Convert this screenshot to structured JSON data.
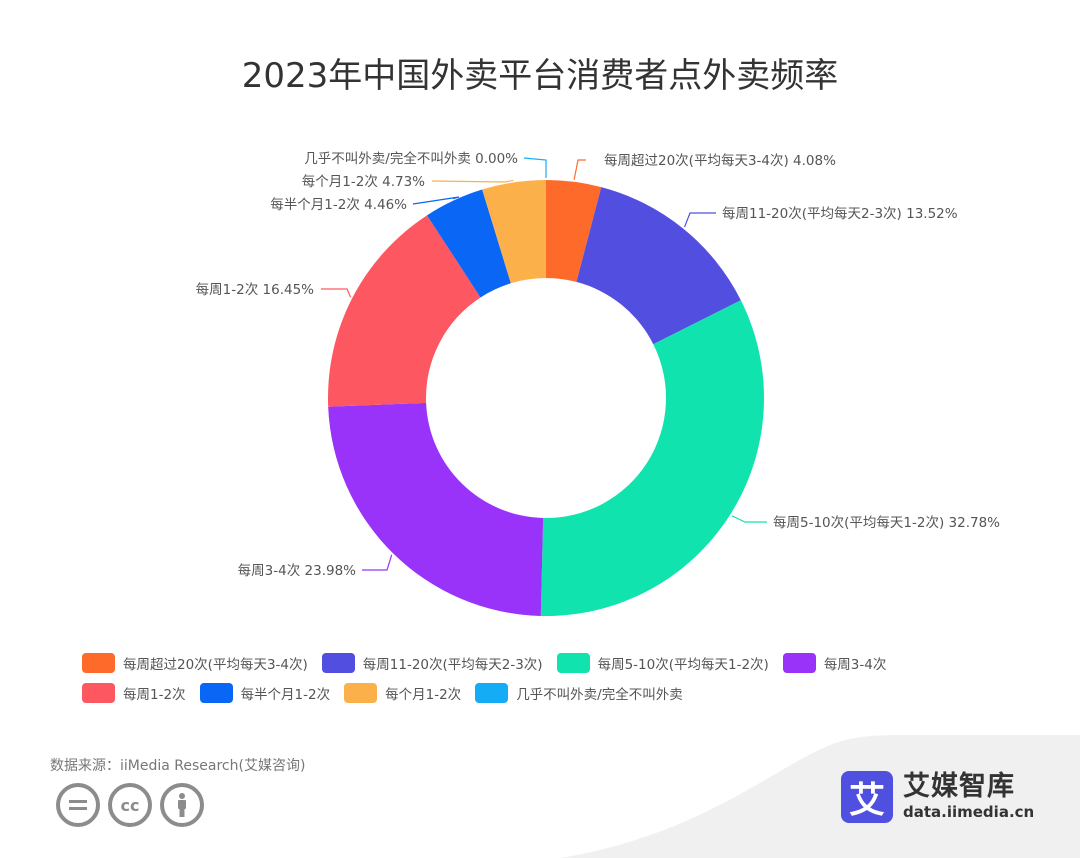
{
  "title": "2023年中国外卖平台消费者点外卖频率",
  "chart_data": {
    "type": "pie",
    "subtype": "donut",
    "title": "2023年中国外卖平台消费者点外卖频率",
    "categories": [
      "每周超过20次(平均每天3-4次)",
      "每周11-20次(平均每天2-3次)",
      "每周5-10次(平均每天1-2次)",
      "每周3-4次",
      "每周1-2次",
      "每半个月1-2次",
      "每个月1-2次",
      "几乎不叫外卖/完全不叫外卖"
    ],
    "values": [
      4.08,
      13.52,
      32.78,
      23.98,
      16.45,
      4.46,
      4.73,
      0.0
    ],
    "unit": "%",
    "colors": [
      "#fd6a2a",
      "#524fe0",
      "#10e3ad",
      "#9933fa",
      "#fd5761",
      "#0a66f5",
      "#fcb04a",
      "#14acf5"
    ],
    "start_angle": "12 o'clock, clockwise",
    "legend_position": "bottom",
    "labels": [
      "每周超过20次(平均每天3-4次) 4.08%",
      "每周11-20次(平均每天2-3次) 13.52%",
      "每周5-10次(平均每天1-2次) 32.78%",
      "每周3-4次 23.98%",
      "每周1-2次 16.45%",
      "每半个月1-2次 4.46%",
      "每个月1-2次 4.73%",
      "几乎不叫外卖/完全不叫外卖 0.00%"
    ]
  },
  "legend": {
    "row1": [
      {
        "label": "每周超过20次(平均每天3-4次)",
        "color": "#fd6a2a"
      },
      {
        "label": "每周11-20次(平均每天2-3次)",
        "color": "#524fe0"
      },
      {
        "label": "每周5-10次(平均每天1-2次)",
        "color": "#10e3ad"
      },
      {
        "label": "每周3-4次",
        "color": "#9933fa"
      }
    ],
    "row2": [
      {
        "label": "每周1-2次",
        "color": "#fd5761"
      },
      {
        "label": "每半个月1-2次",
        "color": "#0a66f5"
      },
      {
        "label": "每个月1-2次",
        "color": "#fcb04a"
      },
      {
        "label": "几乎不叫外卖/完全不叫外卖",
        "color": "#14acf5"
      }
    ]
  },
  "footer": {
    "source": "数据来源：iiMedia Research(艾媒咨询)",
    "license_icons": [
      "=",
      "cc",
      "person"
    ],
    "brand_logo_char": "艾",
    "brand_name": "艾媒智库",
    "brand_url": "data.iimedia.cn"
  }
}
